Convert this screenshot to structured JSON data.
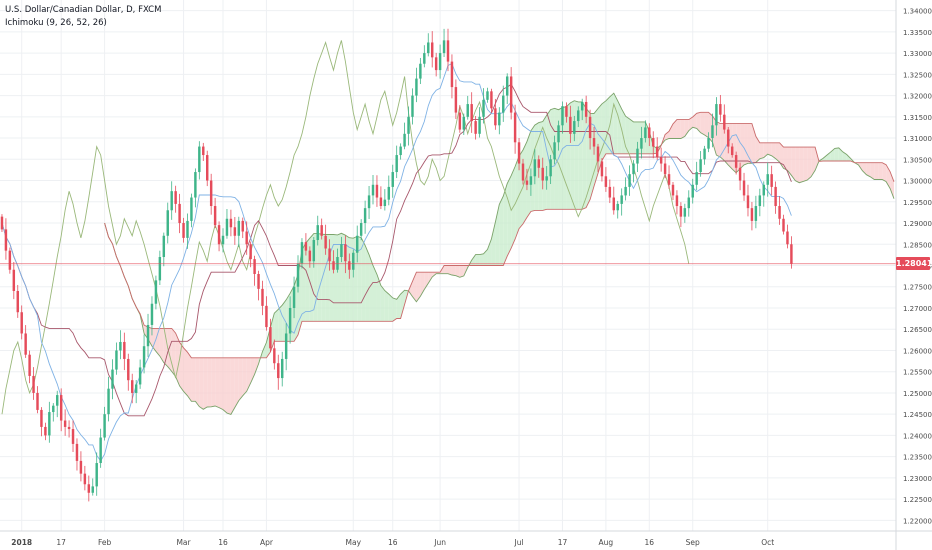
{
  "header": {
    "title": "U.S. Dollar/Canadian Dollar, D, FXCM",
    "indicator": "Ichimoku (9, 26, 52, 26)"
  },
  "colors": {
    "up": "#3eb489",
    "down": "#e54b5a",
    "tenkan": "#7fb2e5",
    "kijun": "#a8576b",
    "chikou": "#9ab87a",
    "span_a": "#7ba36a",
    "span_b": "#c96b6b",
    "cloud_bull": "#c6ebc9",
    "cloud_bear": "#f8cccc",
    "last_price_line": "#e54b5a",
    "grid": "#eef0f3",
    "axis_text": "#4a4a4a"
  },
  "chart_data": {
    "type": "candlestick",
    "symbol": "U.S. Dollar/Canadian Dollar",
    "timeframe": "D",
    "source": "FXCM",
    "indicator": {
      "name": "Ichimoku",
      "params": [
        9,
        26,
        52,
        26
      ]
    },
    "last_price": "1.28041",
    "ylim": [
      1.2175,
      1.3425
    ],
    "y_ticks": [
      "1.22000",
      "1.22500",
      "1.23000",
      "1.23500",
      "1.24000",
      "1.24500",
      "1.25000",
      "1.25500",
      "1.26000",
      "1.26500",
      "1.27000",
      "1.27500",
      "1.28000",
      "1.28500",
      "1.29000",
      "1.29500",
      "1.30000",
      "1.30500",
      "1.31000",
      "1.31500",
      "1.32000",
      "1.32500",
      "1.33000",
      "1.33500",
      "1.34000"
    ],
    "x_labels": [
      {
        "label": "2018",
        "bar": 5,
        "bold": true
      },
      {
        "label": "17",
        "bar": 15
      },
      {
        "label": "Feb",
        "bar": 26
      },
      {
        "label": "Mar",
        "bar": 46
      },
      {
        "label": "16",
        "bar": 56
      },
      {
        "label": "Apr",
        "bar": 67
      },
      {
        "label": "May",
        "bar": 89
      },
      {
        "label": "16",
        "bar": 99
      },
      {
        "label": "Jun",
        "bar": 111
      },
      {
        "label": "Jul",
        "bar": 131
      },
      {
        "label": "17",
        "bar": 142
      },
      {
        "label": "Aug",
        "bar": 153
      },
      {
        "label": "16",
        "bar": 164
      },
      {
        "label": "Sep",
        "bar": 175
      },
      {
        "label": "Oct",
        "bar": 194
      }
    ],
    "closes": [
      1.2885,
      1.2835,
      1.279,
      1.274,
      1.269,
      1.264,
      1.259,
      1.254,
      1.25,
      1.246,
      1.242,
      1.24,
      1.2455,
      1.247,
      1.2495,
      1.2435,
      1.242,
      1.2415,
      1.238,
      1.234,
      1.231,
      1.2285,
      1.2265,
      1.228,
      1.2335,
      1.2395,
      1.245,
      1.251,
      1.2555,
      1.26,
      1.262,
      1.258,
      1.253,
      1.25,
      1.252,
      1.256,
      1.261,
      1.266,
      1.271,
      1.2765,
      1.282,
      1.287,
      1.293,
      1.2975,
      1.2945,
      1.29,
      1.2865,
      1.2905,
      1.296,
      1.302,
      1.308,
      1.306,
      1.3,
      1.294,
      1.2895,
      1.285,
      1.287,
      1.291,
      1.289,
      1.287,
      1.2905,
      1.288,
      1.285,
      1.2815,
      1.278,
      1.2745,
      1.2705,
      1.2655,
      1.2605,
      1.257,
      1.2535,
      1.258,
      1.264,
      1.27,
      1.275,
      1.2805,
      1.2855,
      1.2835,
      1.281,
      1.286,
      1.2895,
      1.287,
      1.284,
      1.281,
      1.279,
      1.282,
      1.285,
      1.281,
      1.279,
      1.283,
      1.287,
      1.29,
      1.2935,
      1.2965,
      1.299,
      1.296,
      1.294,
      1.2955,
      1.2985,
      1.302,
      1.306,
      1.308,
      1.311,
      1.315,
      1.32,
      1.324,
      1.3275,
      1.33,
      1.3325,
      1.329,
      1.326,
      1.33,
      1.333,
      1.328,
      1.322,
      1.316,
      1.312,
      1.315,
      1.318,
      1.314,
      1.311,
      1.315,
      1.319,
      1.321,
      1.317,
      1.313,
      1.316,
      1.32,
      1.3245,
      1.316,
      1.309,
      1.304,
      1.3,
      1.299,
      1.301,
      1.305,
      1.303,
      1.3,
      1.301,
      1.305,
      1.309,
      1.313,
      1.3175,
      1.315,
      1.311,
      1.314,
      1.3165,
      1.3185,
      1.315,
      1.31,
      1.308,
      1.3045,
      1.301,
      1.2985,
      1.296,
      1.293,
      1.2945,
      1.2965,
      1.2985,
      1.3015,
      1.304,
      1.3075,
      1.31,
      1.3125,
      1.31,
      1.308,
      1.3055,
      1.304,
      1.3015,
      1.299,
      1.2965,
      1.294,
      1.2915,
      1.2935,
      1.296,
      1.299,
      1.302,
      1.305,
      1.3075,
      1.31,
      1.313,
      1.318,
      1.3155,
      1.312,
      1.308,
      1.306,
      1.303,
      1.3,
      1.2965,
      1.2935,
      1.2905,
      1.294,
      1.2965,
      1.299,
      1.3015,
      1.2985,
      1.294,
      1.291,
      1.288,
      1.285,
      1.2804
    ]
  }
}
